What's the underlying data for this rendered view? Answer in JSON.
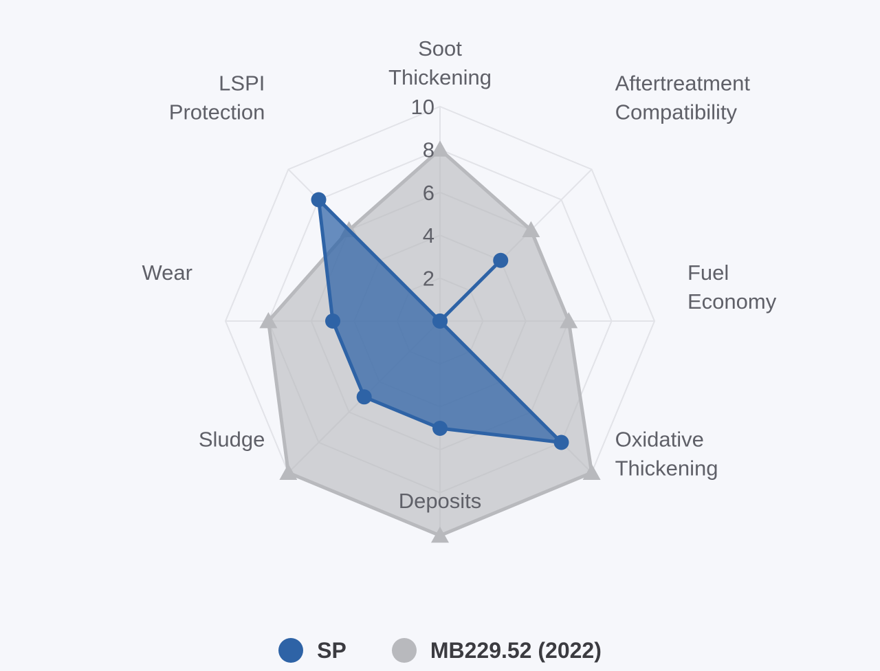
{
  "chart_data": {
    "type": "radar",
    "title": "",
    "axes": [
      [
        "Soot",
        "Thickening"
      ],
      [
        "Aftertreatment",
        "Compatibility"
      ],
      [
        "Fuel",
        "Economy"
      ],
      [
        "Oxidative",
        "Thickening"
      ],
      [
        "Deposits"
      ],
      [
        "Sludge"
      ],
      [
        "Wear"
      ],
      [
        "LSPI",
        "Protection"
      ]
    ],
    "rlim": [
      0,
      10
    ],
    "ticks": [
      "2",
      "4",
      "6",
      "8",
      "10"
    ],
    "series": [
      {
        "name": "SP",
        "values": [
          0,
          4,
          0,
          8,
          5,
          5,
          5,
          8
        ],
        "color": "#2e63a6",
        "marker": "circle"
      },
      {
        "name": "MB229.52 (2022)",
        "values": [
          8,
          6,
          6,
          10,
          10,
          10,
          8,
          6
        ],
        "color": "#b8b9bd",
        "marker": "triangle"
      }
    ],
    "legend": "bottom",
    "grid": true
  },
  "legend": {
    "series_a_label": "SP",
    "series_b_label": "MB229.52 (2022)",
    "series_a_color": "#2e63a6",
    "series_b_color": "#b8b9bd"
  }
}
